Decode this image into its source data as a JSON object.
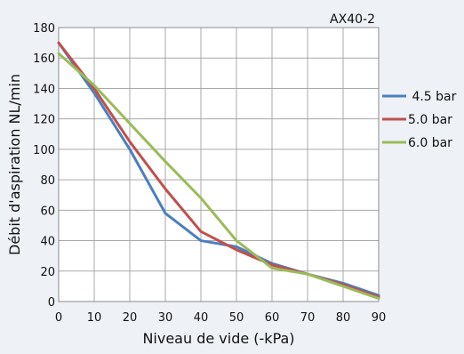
{
  "chart_data": {
    "type": "line",
    "title": "AX40-2",
    "xlabel": "Niveau de vide (-kPa)",
    "ylabel": "Débit d'aspiration NL/min",
    "xlim": [
      0,
      90
    ],
    "ylim": [
      0,
      180
    ],
    "xticks": [
      0,
      10,
      20,
      30,
      40,
      50,
      60,
      70,
      80,
      90
    ],
    "yticks": [
      0,
      20,
      40,
      60,
      80,
      100,
      120,
      140,
      160,
      180
    ],
    "grid": true,
    "legend_position": "right",
    "series": [
      {
        "name": " 4.5 bar",
        "color": "#4a7fc0",
        "x": [
          0,
          10,
          20,
          30,
          40,
          50,
          60,
          70,
          80,
          90
        ],
        "y": [
          170,
          137,
          100,
          58,
          40,
          36,
          25,
          18,
          12,
          4
        ]
      },
      {
        "name": "5.0 bar",
        "color": "#c0504d",
        "x": [
          0,
          10,
          20,
          30,
          40,
          50,
          60,
          70,
          80,
          90
        ],
        "y": [
          170,
          140,
          105,
          74,
          46,
          34,
          24,
          18,
          11,
          3
        ]
      },
      {
        "name": "6.0 bar",
        "color": "#9bbb59",
        "x": [
          0,
          10,
          20,
          30,
          40,
          50,
          60,
          70,
          80,
          90
        ],
        "y": [
          163,
          142,
          117,
          92,
          68,
          40,
          22,
          18,
          10,
          2
        ]
      }
    ]
  }
}
